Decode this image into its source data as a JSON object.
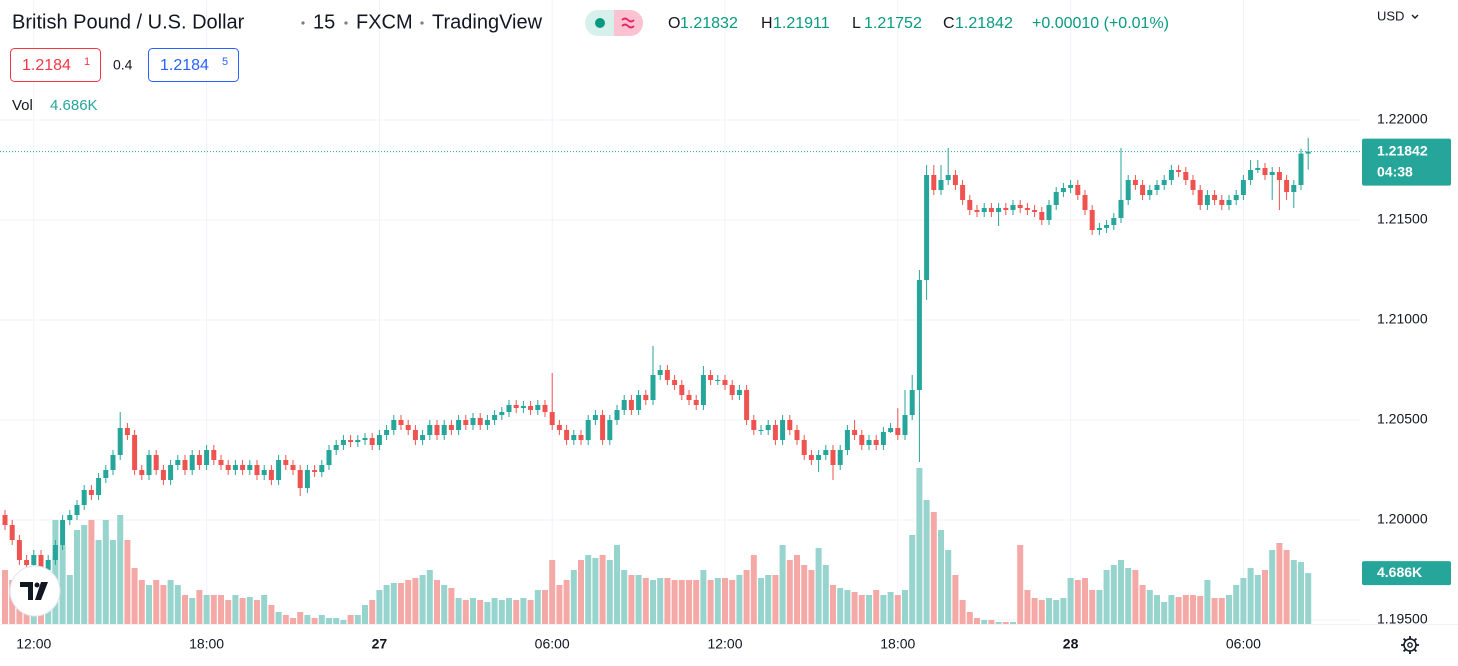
{
  "header": {
    "symbol": "British Pound / U.S. Dollar",
    "interval": "15",
    "exchange": "FXCM",
    "source": "TradingView",
    "ohlc": [
      {
        "key": "O",
        "value": "1.21832"
      },
      {
        "key": "H",
        "value": "1.21911"
      },
      {
        "key": "L",
        "value": "1.21752"
      },
      {
        "key": "C",
        "value": "1.21842"
      }
    ],
    "change": "+0.00010 (+0.01%)",
    "currency": "USD",
    "bid": {
      "main": "1.2184",
      "pip": "1"
    },
    "spread": "0.4",
    "ask": {
      "main": "1.2184",
      "pip": "5"
    },
    "volume_title": "Vol",
    "volume_value": "4.686K"
  },
  "chart_data": {
    "type": "candlestick",
    "x": [
      null,
      null,
      null,
      null,
      "12:00",
      null,
      null,
      null,
      null,
      null,
      null,
      null,
      null,
      null,
      null,
      null,
      null,
      null,
      null,
      null,
      null,
      null,
      null,
      null,
      null,
      null,
      null,
      null,
      "18:00",
      null,
      null,
      null,
      null,
      null,
      null,
      null,
      null,
      null,
      null,
      null,
      null,
      null,
      null,
      null,
      null,
      null,
      null,
      null,
      null,
      null,
      null,
      null,
      "27",
      null,
      null,
      null,
      null,
      null,
      null,
      null,
      null,
      null,
      null,
      null,
      null,
      null,
      null,
      null,
      null,
      null,
      null,
      null,
      null,
      null,
      null,
      null,
      "06:00",
      null,
      null,
      null,
      null,
      null,
      null,
      null,
      null,
      null,
      null,
      null,
      null,
      null,
      null,
      null,
      null,
      null,
      null,
      null,
      null,
      null,
      null,
      null,
      "12:00",
      null,
      null,
      null,
      null,
      null,
      null,
      null,
      null,
      null,
      null,
      null,
      null,
      null,
      null,
      null,
      null,
      null,
      null,
      null,
      null,
      null,
      null,
      null,
      "18:00",
      null,
      null,
      null,
      null,
      null,
      null,
      null,
      null,
      null,
      null,
      null,
      null,
      null,
      null,
      null,
      null,
      null,
      null,
      null,
      null,
      null,
      null,
      null,
      "28",
      null,
      null,
      null,
      null,
      null,
      null,
      null,
      null,
      null,
      null,
      null,
      null,
      null,
      null,
      null,
      null,
      null,
      null,
      null,
      null,
      null,
      null,
      null,
      "06:00",
      null,
      null,
      null,
      null,
      null,
      null,
      null,
      null,
      null
    ],
    "open": [
      1.20025,
      1.19975,
      1.199,
      1.198,
      1.19775,
      1.19825,
      1.1975,
      1.198,
      1.19875,
      1.2,
      1.20025,
      1.20075,
      1.2015,
      1.20125,
      1.2021,
      1.2025,
      1.20325,
      1.2046,
      1.20425,
      1.2025,
      1.20225,
      1.20325,
      1.2025,
      1.202,
      1.20275,
      1.203,
      1.2025,
      1.20325,
      1.20275,
      1.2035,
      1.203,
      1.20275,
      1.2025,
      1.20275,
      1.2025,
      1.20275,
      1.20225,
      1.2025,
      1.202,
      1.203,
      1.20275,
      1.2025,
      1.2016,
      1.2025,
      1.2024,
      1.20275,
      1.2035,
      1.20375,
      1.204,
      1.2039,
      1.204,
      1.2041,
      1.20375,
      1.20425,
      1.2045,
      1.205,
      1.20475,
      1.2045,
      1.204,
      1.20425,
      1.20475,
      1.20425,
      1.20475,
      1.2045,
      1.205,
      1.20475,
      1.2051,
      1.20475,
      1.205,
      1.20525,
      1.2054,
      1.20575,
      1.2056,
      1.2057,
      1.2055,
      1.20575,
      1.2054,
      1.20475,
      1.2045,
      1.204,
      1.20425,
      1.204,
      1.205,
      1.20525,
      1.204,
      1.205,
      1.2055,
      1.206,
      1.2055,
      1.20625,
      1.206,
      1.20725,
      1.2075,
      1.207,
      1.20675,
      1.20625,
      1.206,
      1.20575,
      1.20725,
      1.207,
      1.207,
      1.20675,
      1.20625,
      1.2065,
      1.205,
      1.2045,
      1.2045,
      1.20475,
      1.204,
      1.205,
      1.2045,
      1.204,
      1.20325,
      1.203,
      1.20325,
      1.2035,
      1.20275,
      1.2035,
      1.2045,
      1.20425,
      1.20375,
      1.204,
      1.20375,
      1.2044,
      1.2046,
      1.20425,
      1.20525,
      1.2065,
      1.212,
      1.21725,
      1.2165,
      1.217,
      1.21725,
      1.21675,
      1.216,
      1.2155,
      1.2154,
      1.2156,
      1.2154,
      1.2156,
      1.2155,
      1.21575,
      1.2156,
      1.2155,
      1.2154,
      1.215,
      1.21575,
      1.2164,
      1.2166,
      1.21675,
      1.21625,
      1.2155,
      1.2145,
      1.2146,
      1.21475,
      1.2151,
      1.216,
      1.217,
      1.21675,
      1.21625,
      1.2165,
      1.21675,
      1.217,
      1.2175,
      1.2174,
      1.217,
      1.2165,
      1.21575,
      1.21625,
      1.216,
      1.21575,
      1.216,
      1.21625,
      1.217,
      1.2175,
      1.2176,
      1.21725,
      1.2174,
      1.217,
      1.2164,
      1.21675,
      1.21832
    ],
    "high": [
      1.2005,
      1.2,
      1.19925,
      1.19825,
      1.1985,
      1.1985,
      1.19825,
      1.199,
      1.20025,
      1.2005,
      1.201,
      1.20175,
      1.20175,
      1.20235,
      1.20275,
      1.2035,
      1.2054,
      1.20485,
      1.2045,
      1.20275,
      1.2035,
      1.2035,
      1.20275,
      1.203,
      1.20325,
      1.20325,
      1.2035,
      1.2035,
      1.20375,
      1.20375,
      1.20325,
      1.203,
      1.203,
      1.203,
      1.203,
      1.203,
      1.20275,
      1.20275,
      1.20325,
      1.20325,
      1.203,
      1.20275,
      1.20275,
      1.20275,
      1.203,
      1.20375,
      1.204,
      1.20425,
      1.20425,
      1.20425,
      1.20435,
      1.20435,
      1.2045,
      1.20475,
      1.20525,
      1.20525,
      1.205,
      1.20475,
      1.2045,
      1.205,
      1.205,
      1.205,
      1.205,
      1.20525,
      1.20525,
      1.20535,
      1.20535,
      1.20525,
      1.2055,
      1.20565,
      1.206,
      1.206,
      1.20595,
      1.20595,
      1.206,
      1.206,
      1.20735,
      1.205,
      1.20475,
      1.2045,
      1.2045,
      1.20525,
      1.2055,
      1.2055,
      1.20525,
      1.20575,
      1.20625,
      1.20625,
      1.2065,
      1.2065,
      1.2087,
      1.20775,
      1.20775,
      1.20725,
      1.207,
      1.2065,
      1.20625,
      1.2077,
      1.2075,
      1.20725,
      1.20725,
      1.207,
      1.20675,
      1.20675,
      1.20525,
      1.20475,
      1.205,
      1.205,
      1.20525,
      1.20525,
      1.20475,
      1.20425,
      1.2035,
      1.2035,
      1.20375,
      1.20375,
      1.20375,
      1.20475,
      1.205,
      1.2045,
      1.20425,
      1.20425,
      1.20465,
      1.20485,
      1.2056,
      1.2065,
      1.20725,
      1.2125,
      1.21775,
      1.21775,
      1.21775,
      1.2186,
      1.2175,
      1.217,
      1.21625,
      1.21575,
      1.21585,
      1.21585,
      1.21585,
      1.21585,
      1.216,
      1.216,
      1.21585,
      1.21575,
      1.21565,
      1.216,
      1.21665,
      1.21685,
      1.217,
      1.217,
      1.2165,
      1.21575,
      1.21485,
      1.215,
      1.21535,
      1.2186,
      1.21725,
      1.21725,
      1.217,
      1.21675,
      1.217,
      1.21725,
      1.21775,
      1.21775,
      1.21765,
      1.21725,
      1.21675,
      1.2165,
      1.2165,
      1.21625,
      1.21625,
      1.2165,
      1.21725,
      1.218,
      1.218,
      1.21785,
      1.21765,
      1.21765,
      1.21725,
      1.217,
      1.21857,
      1.21911
    ],
    "low": [
      1.1995,
      1.19875,
      1.19775,
      1.1975,
      1.1975,
      1.197,
      1.19725,
      1.19775,
      1.1985,
      1.19975,
      1.2,
      1.2005,
      1.201,
      1.201,
      1.20185,
      1.20225,
      1.203,
      1.204,
      1.20225,
      1.202,
      1.202,
      1.20225,
      1.20175,
      1.20175,
      1.2025,
      1.20225,
      1.20225,
      1.2025,
      1.2025,
      1.20275,
      1.2025,
      1.20225,
      1.20225,
      1.20225,
      1.20225,
      1.202,
      1.202,
      1.20175,
      1.20175,
      1.2025,
      1.20225,
      1.2012,
      1.20135,
      1.20215,
      1.20215,
      1.2025,
      1.20325,
      1.2035,
      1.20365,
      1.20365,
      1.20375,
      1.2035,
      1.2035,
      1.204,
      1.20425,
      1.2045,
      1.20425,
      1.20375,
      1.20375,
      1.204,
      1.204,
      1.204,
      1.20425,
      1.20425,
      1.2045,
      1.2045,
      1.2045,
      1.2045,
      1.20475,
      1.205,
      1.20515,
      1.20535,
      1.20535,
      1.20525,
      1.20525,
      1.20515,
      1.2045,
      1.20425,
      1.20375,
      1.20375,
      1.20375,
      1.20375,
      1.20475,
      1.20375,
      1.20375,
      1.20475,
      1.20525,
      1.20525,
      1.20525,
      1.20575,
      1.20575,
      1.207,
      1.20675,
      1.2065,
      1.206,
      1.20575,
      1.2055,
      1.2055,
      1.20675,
      1.20675,
      1.2065,
      1.206,
      1.206,
      1.20475,
      1.20425,
      1.20425,
      1.20425,
      1.20375,
      1.20375,
      1.20425,
      1.20375,
      1.203,
      1.20275,
      1.2024,
      1.203,
      1.202,
      1.2025,
      1.20325,
      1.204,
      1.2035,
      1.2035,
      1.2035,
      1.2035,
      1.20435,
      1.204,
      1.204,
      1.205,
      1.2029,
      1.211,
      1.21625,
      1.21625,
      1.21675,
      1.2165,
      1.21575,
      1.21525,
      1.21515,
      1.21515,
      1.21515,
      1.2147,
      1.21525,
      1.21525,
      1.21535,
      1.21525,
      1.21515,
      1.21475,
      1.21475,
      1.2155,
      1.21615,
      1.21635,
      1.216,
      1.21525,
      1.21425,
      1.21425,
      1.21435,
      1.2145,
      1.21485,
      1.21575,
      1.2165,
      1.216,
      1.216,
      1.21625,
      1.2165,
      1.21675,
      1.21715,
      1.21675,
      1.21625,
      1.2155,
      1.2155,
      1.21575,
      1.2155,
      1.2155,
      1.21575,
      1.216,
      1.21675,
      1.21735,
      1.217,
      1.216,
      1.2155,
      1.216,
      1.2156,
      1.2165,
      1.21752
    ],
    "close": [
      1.19975,
      1.199,
      1.198,
      1.19775,
      1.19825,
      1.1975,
      1.198,
      1.19875,
      1.2,
      1.20025,
      1.20075,
      1.2015,
      1.20125,
      1.2021,
      1.2025,
      1.20325,
      1.2046,
      1.20425,
      1.2025,
      1.20225,
      1.20325,
      1.2025,
      1.202,
      1.20275,
      1.203,
      1.2025,
      1.20325,
      1.20275,
      1.2035,
      1.203,
      1.20275,
      1.2025,
      1.20275,
      1.2025,
      1.20275,
      1.20225,
      1.2025,
      1.202,
      1.203,
      1.20275,
      1.2025,
      1.2016,
      1.2025,
      1.2024,
      1.20275,
      1.2035,
      1.20375,
      1.204,
      1.2039,
      1.204,
      1.2041,
      1.20375,
      1.20425,
      1.2045,
      1.205,
      1.20475,
      1.2045,
      1.204,
      1.20425,
      1.20475,
      1.20425,
      1.20475,
      1.2045,
      1.205,
      1.20475,
      1.2051,
      1.20475,
      1.205,
      1.20525,
      1.2054,
      1.20575,
      1.2056,
      1.2057,
      1.2055,
      1.20575,
      1.2054,
      1.20475,
      1.2045,
      1.204,
      1.20425,
      1.204,
      1.205,
      1.20525,
      1.204,
      1.205,
      1.2055,
      1.206,
      1.2055,
      1.20625,
      1.206,
      1.20725,
      1.2075,
      1.207,
      1.20675,
      1.20625,
      1.206,
      1.20575,
      1.20725,
      1.207,
      1.207,
      1.20675,
      1.20625,
      1.2065,
      1.205,
      1.2045,
      1.2045,
      1.20475,
      1.204,
      1.205,
      1.2045,
      1.204,
      1.20325,
      1.203,
      1.20325,
      1.2035,
      1.20275,
      1.2035,
      1.2045,
      1.20425,
      1.20375,
      1.204,
      1.20375,
      1.2044,
      1.2046,
      1.20425,
      1.20525,
      1.2065,
      1.212,
      1.21725,
      1.2165,
      1.217,
      1.21725,
      1.21675,
      1.216,
      1.2155,
      1.2154,
      1.2156,
      1.2154,
      1.2156,
      1.2155,
      1.21575,
      1.2156,
      1.2155,
      1.2154,
      1.215,
      1.21575,
      1.2164,
      1.2166,
      1.21675,
      1.21625,
      1.2155,
      1.2145,
      1.2146,
      1.21475,
      1.2151,
      1.216,
      1.217,
      1.21675,
      1.21625,
      1.2165,
      1.21675,
      1.217,
      1.2175,
      1.2174,
      1.217,
      1.2165,
      1.21575,
      1.21625,
      1.216,
      1.21575,
      1.216,
      1.21625,
      1.217,
      1.2175,
      1.2176,
      1.21725,
      1.2174,
      1.217,
      1.2164,
      1.21675,
      1.21832,
      1.21842
    ],
    "volume": [
      4968,
      4048,
      3588,
      4968,
      4048,
      4048,
      4508,
      9568,
      7268,
      4508,
      8648,
      9108,
      9568,
      7728,
      9568,
      7728,
      10028,
      7728,
      5152,
      4048,
      3588,
      4048,
      3588,
      4048,
      3588,
      2668,
      2392,
      3128,
      2668,
      2668,
      2668,
      2208,
      2668,
      2392,
      2484,
      2208,
      2668,
      1748,
      1104,
      828,
      552,
      1104,
      828,
      552,
      828,
      552,
      552,
      368,
      828,
      828,
      1748,
      2208,
      3128,
      3588,
      3772,
      3772,
      4048,
      4232,
      4508,
      4968,
      4048,
      3588,
      3312,
      2392,
      2208,
      2392,
      2208,
      2024,
      2392,
      2208,
      2392,
      2208,
      2392,
      2208,
      3128,
      3128,
      5888,
      3588,
      4048,
      4968,
      5888,
      6348,
      6072,
      6348,
      5888,
      7268,
      4968,
      4508,
      4508,
      4232,
      4048,
      4232,
      4232,
      4048,
      4048,
      4048,
      4048,
      4968,
      4048,
      4232,
      4232,
      4048,
      4508,
      4968,
      6348,
      4232,
      4508,
      4508,
      7268,
      5888,
      6348,
      5428,
      4968,
      6992,
      5428,
      3588,
      3312,
      3128,
      2944,
      2668,
      2668,
      3128,
      2668,
      2944,
      2668,
      3128,
      8188,
      14352,
      11408,
      10304,
      8648,
      6808,
      4508,
      2208,
      1104,
      552,
      368,
      368,
      184,
      184,
      184,
      7268,
      3128,
      2392,
      2208,
      2392,
      2208,
      2392,
      4232,
      4048,
      4232,
      3128,
      3128,
      4968,
      5428,
      5888,
      5152,
      4968,
      3588,
      3128,
      2668,
      2024,
      2668,
      2484,
      2668,
      2668,
      2576,
      4048,
      2392,
      2392,
      2668,
      3588,
      4232,
      5152,
      4508,
      4968,
      6808,
      7452,
      6808,
      5888,
      5704,
      4686
    ],
    "ylim": [
      1.1948,
      1.226
    ],
    "yticks": [
      {
        "value": 1.195,
        "label": "1.19500"
      },
      {
        "value": 1.2,
        "label": "1.20000"
      },
      {
        "value": 1.205,
        "label": "1.20500"
      },
      {
        "value": 1.21,
        "label": "1.21000"
      },
      {
        "value": 1.215,
        "label": "1.21500"
      },
      {
        "value": 1.22,
        "label": "1.22000"
      }
    ],
    "grid": true,
    "up_color": "#26a69a",
    "down_color": "#ef5350",
    "volume_up_color": "#98d4ce",
    "volume_down_color": "#f5a9a7",
    "last_price_label": "1.21842",
    "countdown": "04:38",
    "volume_label": "4.686K"
  }
}
